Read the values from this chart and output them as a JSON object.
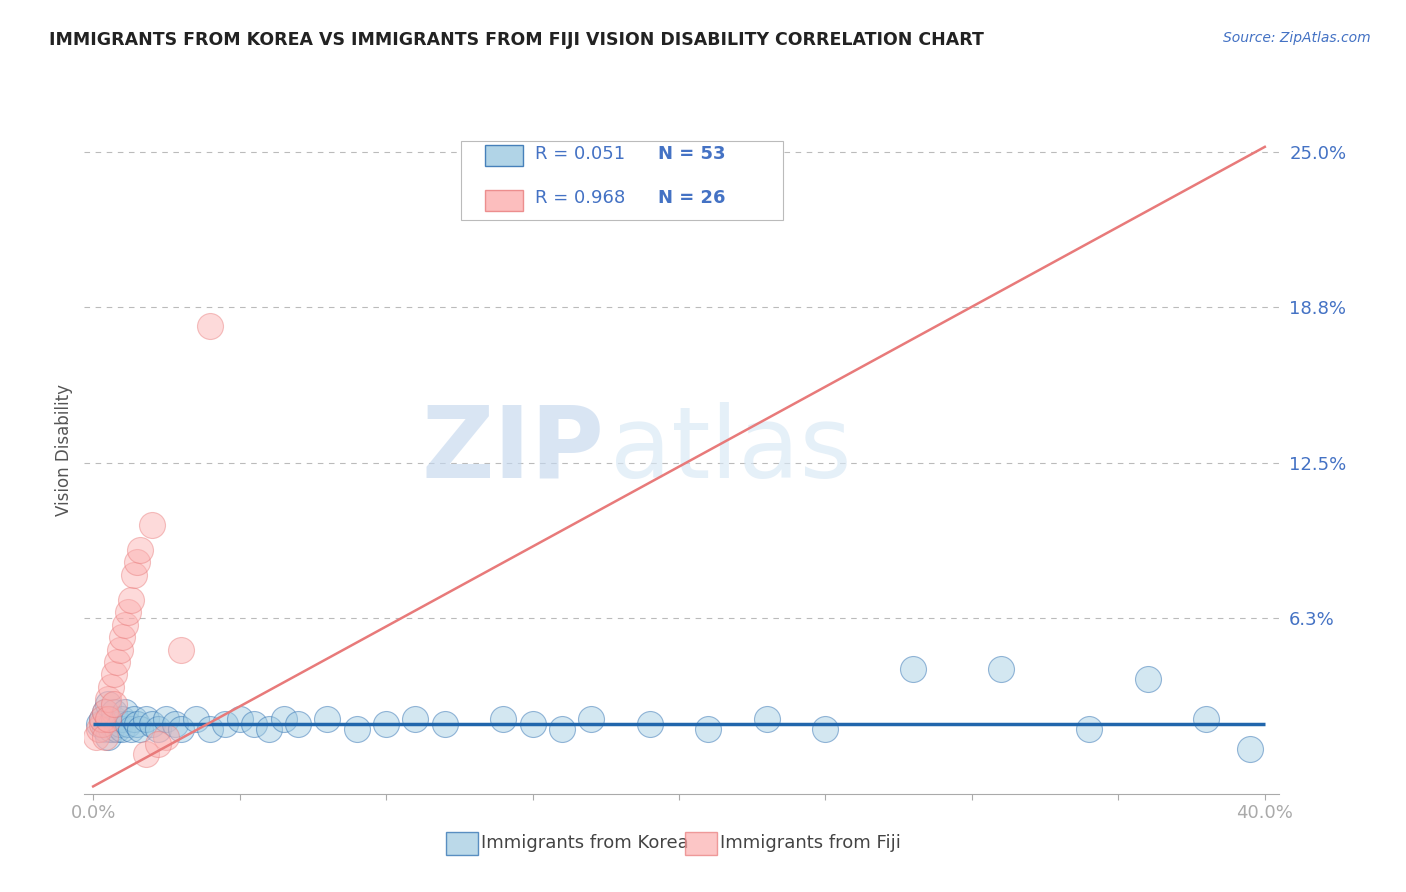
{
  "title": "IMMIGRANTS FROM KOREA VS IMMIGRANTS FROM FIJI VISION DISABILITY CORRELATION CHART",
  "source_text": "Source: ZipAtlas.com",
  "ylabel": "Vision Disability",
  "watermark_zip": "ZIP",
  "watermark_atlas": "atlas",
  "legend_korea": "Immigrants from Korea",
  "legend_fiji": "Immigrants from Fiji",
  "korea_R": "0.051",
  "korea_N": "53",
  "fiji_R": "0.968",
  "fiji_N": "26",
  "xlim": [
    -0.003,
    0.405
  ],
  "ylim": [
    -0.008,
    0.268
  ],
  "ytick_vals": [
    0.0,
    0.0625,
    0.125,
    0.1875,
    0.25
  ],
  "ytick_labels": [
    "",
    "6.3%",
    "12.5%",
    "18.8%",
    "25.0%"
  ],
  "xtick_vals": [
    0.0,
    0.05,
    0.1,
    0.15,
    0.2,
    0.25,
    0.3,
    0.35,
    0.4
  ],
  "xtick_labels": [
    "0.0%",
    "",
    "",
    "",
    "",
    "",
    "",
    "",
    "40.0%"
  ],
  "color_korea": "#9ecae1",
  "color_fiji": "#fcaeae",
  "color_korea_line": "#2166ac",
  "color_fiji_line": "#e87a7a",
  "korea_scatter_x": [
    0.002,
    0.003,
    0.004,
    0.004,
    0.005,
    0.005,
    0.006,
    0.006,
    0.007,
    0.007,
    0.008,
    0.009,
    0.01,
    0.01,
    0.011,
    0.012,
    0.013,
    0.014,
    0.015,
    0.016,
    0.018,
    0.02,
    0.022,
    0.025,
    0.028,
    0.03,
    0.035,
    0.04,
    0.045,
    0.05,
    0.055,
    0.06,
    0.065,
    0.07,
    0.08,
    0.09,
    0.1,
    0.11,
    0.12,
    0.14,
    0.15,
    0.16,
    0.17,
    0.19,
    0.21,
    0.23,
    0.25,
    0.28,
    0.31,
    0.34,
    0.36,
    0.38,
    0.395
  ],
  "korea_scatter_y": [
    0.02,
    0.022,
    0.018,
    0.025,
    0.015,
    0.028,
    0.02,
    0.018,
    0.022,
    0.025,
    0.018,
    0.02,
    0.022,
    0.018,
    0.025,
    0.02,
    0.018,
    0.022,
    0.02,
    0.018,
    0.022,
    0.02,
    0.018,
    0.022,
    0.02,
    0.018,
    0.022,
    0.018,
    0.02,
    0.022,
    0.02,
    0.018,
    0.022,
    0.02,
    0.022,
    0.018,
    0.02,
    0.022,
    0.02,
    0.022,
    0.02,
    0.018,
    0.022,
    0.02,
    0.018,
    0.022,
    0.018,
    0.042,
    0.042,
    0.018,
    0.038,
    0.022,
    0.01
  ],
  "fiji_scatter_x": [
    0.001,
    0.002,
    0.003,
    0.003,
    0.004,
    0.004,
    0.005,
    0.005,
    0.006,
    0.007,
    0.007,
    0.008,
    0.009,
    0.01,
    0.011,
    0.012,
    0.013,
    0.014,
    0.015,
    0.016,
    0.02,
    0.025,
    0.03,
    0.018,
    0.022,
    0.04
  ],
  "fiji_scatter_y": [
    0.015,
    0.018,
    0.02,
    0.022,
    0.025,
    0.015,
    0.03,
    0.022,
    0.035,
    0.04,
    0.028,
    0.045,
    0.05,
    0.055,
    0.06,
    0.065,
    0.07,
    0.08,
    0.085,
    0.09,
    0.1,
    0.015,
    0.05,
    0.008,
    0.012,
    0.18
  ],
  "fiji_line_x0": 0.0,
  "fiji_line_x1": 0.4,
  "fiji_line_y0": -0.005,
  "fiji_line_y1": 0.252,
  "korea_line_y": 0.02,
  "background_color": "#ffffff",
  "grid_color": "#cccccc",
  "axis_label_color": "#4472c4",
  "title_color": "#222222",
  "legend_text_color": "#4472c4",
  "ylabel_color": "#555555"
}
